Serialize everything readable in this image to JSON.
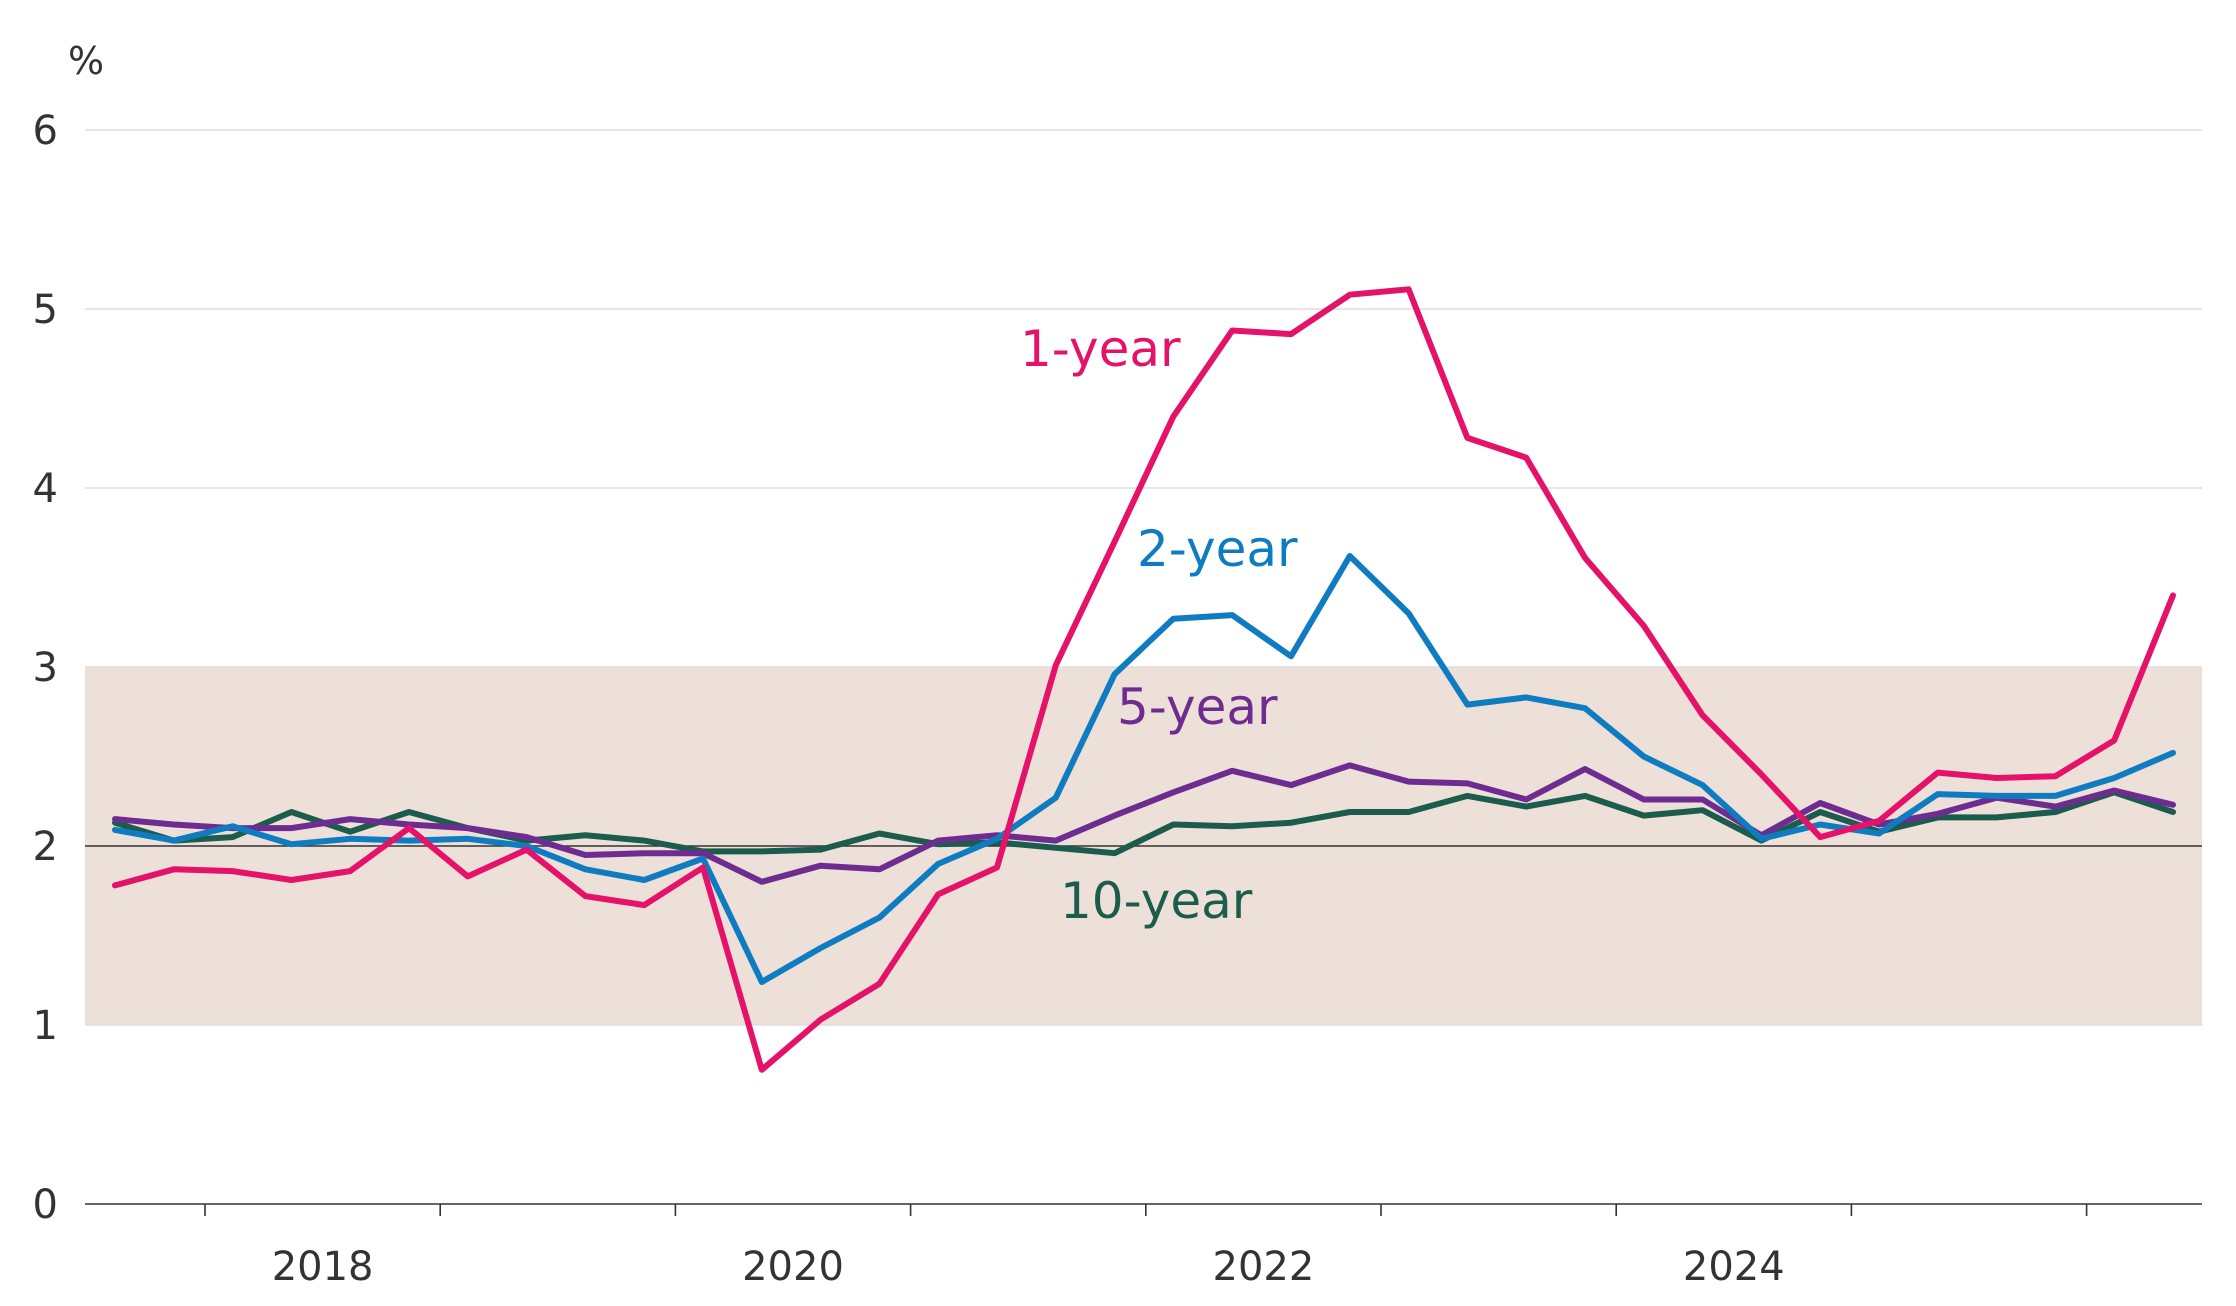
{
  "chart_data": {
    "type": "line",
    "unit_label": "%",
    "x_tick_labels": [
      "2018",
      "2020",
      "2022",
      "2024"
    ],
    "ylim": [
      0,
      6
    ],
    "y_ticks": [
      "0",
      "1",
      "2",
      "3",
      "4",
      "5",
      "6"
    ],
    "grid": true,
    "target_band": [
      1,
      3
    ],
    "target_line": 2,
    "x_start_year": 2017,
    "series": [
      {
        "name": "1-year",
        "color": "#e5126a",
        "values": [
          1.78,
          1.87,
          1.86,
          1.81,
          1.86,
          2.1,
          1.83,
          1.98,
          1.72,
          1.67,
          1.88,
          0.75,
          1.03,
          1.23,
          1.73,
          1.88,
          3.01,
          3.7,
          4.4,
          4.88,
          4.86,
          5.08,
          5.11,
          4.28,
          4.17,
          3.61,
          3.23,
          2.73,
          2.4,
          2.05,
          2.14,
          2.41,
          2.38,
          2.39,
          2.59,
          3.4
        ]
      },
      {
        "name": "2-year",
        "color": "#0f7cc1",
        "values": [
          2.09,
          2.03,
          2.11,
          2.01,
          2.04,
          2.03,
          2.04,
          2.0,
          1.87,
          1.81,
          1.93,
          1.24,
          1.43,
          1.6,
          1.9,
          2.04,
          2.27,
          2.96,
          3.27,
          3.29,
          3.06,
          3.62,
          3.3,
          2.79,
          2.83,
          2.77,
          2.5,
          2.34,
          2.04,
          2.12,
          2.07,
          2.29,
          2.28,
          2.28,
          2.38,
          2.52
        ]
      },
      {
        "name": "5-year",
        "color": "#6e2c91",
        "values": [
          2.15,
          2.12,
          2.1,
          2.1,
          2.15,
          2.12,
          2.1,
          2.05,
          1.95,
          1.96,
          1.96,
          1.8,
          1.89,
          1.87,
          2.03,
          2.06,
          2.03,
          2.17,
          2.3,
          2.42,
          2.34,
          2.45,
          2.36,
          2.35,
          2.26,
          2.43,
          2.26,
          2.26,
          2.06,
          2.24,
          2.12,
          2.18,
          2.27,
          2.22,
          2.31,
          2.23
        ]
      },
      {
        "name": "10-year",
        "color": "#1c5c4c",
        "values": [
          2.13,
          2.03,
          2.05,
          2.19,
          2.08,
          2.19,
          2.1,
          2.03,
          2.06,
          2.03,
          1.97,
          1.97,
          1.98,
          2.07,
          2.01,
          2.02,
          1.99,
          1.96,
          2.12,
          2.11,
          2.13,
          2.19,
          2.19,
          2.28,
          2.22,
          2.28,
          2.17,
          2.2,
          2.03,
          2.19,
          2.08,
          2.16,
          2.16,
          2.19,
          2.3,
          2.19
        ]
      }
    ]
  },
  "colors": {
    "band": "#ece0d9",
    "grid": "#dddddd",
    "target_line": "#333333",
    "axis": "#333333"
  }
}
